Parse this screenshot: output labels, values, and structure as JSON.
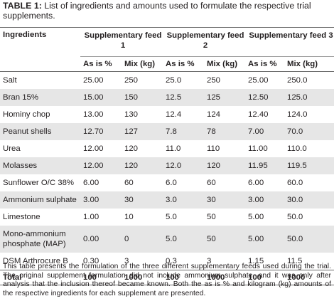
{
  "caption": {
    "label": "TABLE 1:",
    "text": " List of ingredients and amounts used to formulate the respective trial supplements."
  },
  "table": {
    "col0_header": "Ingredients",
    "groups": [
      "Supplementary feed 1",
      "Supplementary feed 2",
      "Supplementary feed 3"
    ],
    "sub_headers": [
      "As is %",
      "Mix (kg)",
      "As is %",
      "Mix (kg)",
      "As is %",
      "Mix (kg)"
    ],
    "rows": [
      {
        "name": "Salt",
        "v": [
          "25.00",
          "250",
          "25.0",
          "250",
          "25.00",
          "250.0"
        ]
      },
      {
        "name": "Bran 15%",
        "v": [
          "15.00",
          "150",
          "12.5",
          "125",
          "12.50",
          "125.0"
        ]
      },
      {
        "name": "Hominy chop",
        "v": [
          "13.00",
          "130",
          "12.4",
          "124",
          "12.40",
          "124.0"
        ]
      },
      {
        "name": "Peanut shells",
        "v": [
          "12.70",
          "127",
          "7.8",
          "78",
          "7.00",
          "70.0"
        ]
      },
      {
        "name": "Urea",
        "v": [
          "12.00",
          "120",
          "11.0",
          "110",
          "11.00",
          "110.0"
        ]
      },
      {
        "name": "Molasses",
        "v": [
          "12.00",
          "120",
          "12.0",
          "120",
          "11.95",
          "119.5"
        ]
      },
      {
        "name": "Sunflower O/C 38%",
        "v": [
          "6.00",
          "60",
          "6.0",
          "60",
          "6.00",
          "60.0"
        ]
      },
      {
        "name": "Ammonium sulphate",
        "v": [
          "3.00",
          "30",
          "3.0",
          "30",
          "3.00",
          "30.0"
        ]
      },
      {
        "name": "Limestone",
        "v": [
          "1.00",
          "10",
          "5.0",
          "50",
          "5.00",
          "50.0"
        ]
      },
      {
        "name": "Mono-ammonium phosphate (MAP)",
        "v": [
          "0.00",
          "0",
          "5.0",
          "50",
          "5.00",
          "50.0"
        ]
      },
      {
        "name": "DSM Arthrocure B",
        "v": [
          "0.30",
          "3",
          "0.3",
          "3",
          "1.15",
          "11.5"
        ]
      }
    ],
    "total": {
      "name": "Total",
      "v": [
        "100",
        "1000",
        "100",
        "1000",
        "100",
        "1000"
      ]
    }
  },
  "note": "This table presents the formulation of the three different supplementary feeds used during the trial. The original supplement formulation did not include ammonium sulphate, and it was only after analysis that the inclusion thereof became known. Both the as is % and kilogram (kg) amounts of the respective ingredients for each supplement are presented."
}
